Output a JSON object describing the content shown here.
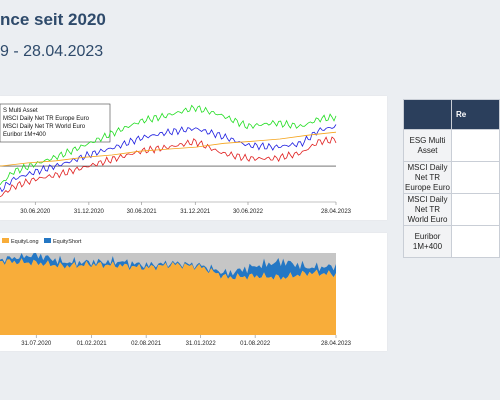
{
  "header": {
    "title": "nce seit 2020",
    "subtitle": "9 - 28.04.2023"
  },
  "table": {
    "header_right": "Re",
    "rows": [
      {
        "name": "ESG Multi Asset"
      },
      {
        "name": "MSCI Daily Net TR Europe Euro"
      },
      {
        "name": "MSCI Daily Net TR World Euro"
      },
      {
        "name": "Euribor 1M+400"
      }
    ]
  },
  "colors": {
    "esg": "#e02020",
    "europe": "#1f1fe0",
    "world": "#22dd22",
    "euribor": "#f5a31a",
    "long": "#f8ad3a",
    "short": "#2477c4",
    "remainder": "#c6c6c6",
    "header_bg": "#2b3f5c"
  },
  "chart_data": [
    {
      "type": "line",
      "legend": [
        "S Multi Asset",
        "MSCI Daily Net TR Europe Euro",
        "MSCI Daily Net TR World Euro",
        "Euribor 1M+400"
      ],
      "x_ticks": [
        "30.06.2020",
        "31.12.2020",
        "30.06.2021",
        "31.12.2021",
        "30.06.2022",
        "28.04.2023"
      ],
      "x": [
        "2020-03-01",
        "2020-04-15",
        "2020-06-30",
        "2020-09-30",
        "2020-12-31",
        "2021-03-31",
        "2021-06-30",
        "2021-09-30",
        "2021-12-31",
        "2022-03-31",
        "2022-06-30",
        "2022-09-30",
        "2022-12-31",
        "2023-02-28",
        "2023-04-28"
      ],
      "series": [
        {
          "name": "MSCI Daily Net TR World Euro",
          "values": [
            0.9,
            0.97,
            1.01,
            1.06,
            1.12,
            1.18,
            1.24,
            1.27,
            1.31,
            1.27,
            1.21,
            1.23,
            1.21,
            1.25,
            1.26
          ]
        },
        {
          "name": "MSCI Daily Net TR Europe Euro",
          "values": [
            0.87,
            0.93,
            0.97,
            1.01,
            1.06,
            1.1,
            1.15,
            1.18,
            1.2,
            1.16,
            1.11,
            1.1,
            1.12,
            1.19,
            1.21
          ]
        },
        {
          "name": "S Multi Asset",
          "values": [
            0.84,
            0.89,
            0.93,
            0.96,
            1.0,
            1.04,
            1.08,
            1.1,
            1.13,
            1.07,
            1.04,
            1.04,
            1.07,
            1.13,
            1.14
          ]
        },
        {
          "name": "Euribor 1M+400",
          "values": [
            1.0,
            1.01,
            1.02,
            1.03,
            1.05,
            1.06,
            1.08,
            1.09,
            1.1,
            1.12,
            1.13,
            1.14,
            1.16,
            1.17,
            1.18
          ]
        }
      ],
      "reference_line": 1.0,
      "grid": false
    },
    {
      "type": "area",
      "legend": [
        "EquityLong",
        "EquityShort"
      ],
      "x_ticks": [
        "31.07.2020",
        "01.02.2021",
        "02.08.2021",
        "31.01.2022",
        "01.08.2022",
        "28.04.2023"
      ],
      "x": [
        "2020-04-01",
        "2020-07-31",
        "2020-11-01",
        "2021-02-01",
        "2021-05-01",
        "2021-08-02",
        "2021-11-01",
        "2022-01-31",
        "2022-04-30",
        "2022-08-01",
        "2022-11-01",
        "2023-01-31",
        "2023-04-28"
      ],
      "series": [
        {
          "name": "EquityLong",
          "values": [
            0.9,
            0.88,
            0.84,
            0.86,
            0.85,
            0.82,
            0.86,
            0.83,
            0.7,
            0.72,
            0.7,
            0.76,
            0.74
          ]
        },
        {
          "name": "EquityShort",
          "values": [
            0.02,
            0.1,
            0.05,
            0.02,
            0.05,
            0.03,
            0.02,
            0.02,
            0.05,
            0.12,
            0.2,
            0.06,
            0.1
          ]
        }
      ],
      "ylim": [
        0,
        1
      ]
    }
  ]
}
